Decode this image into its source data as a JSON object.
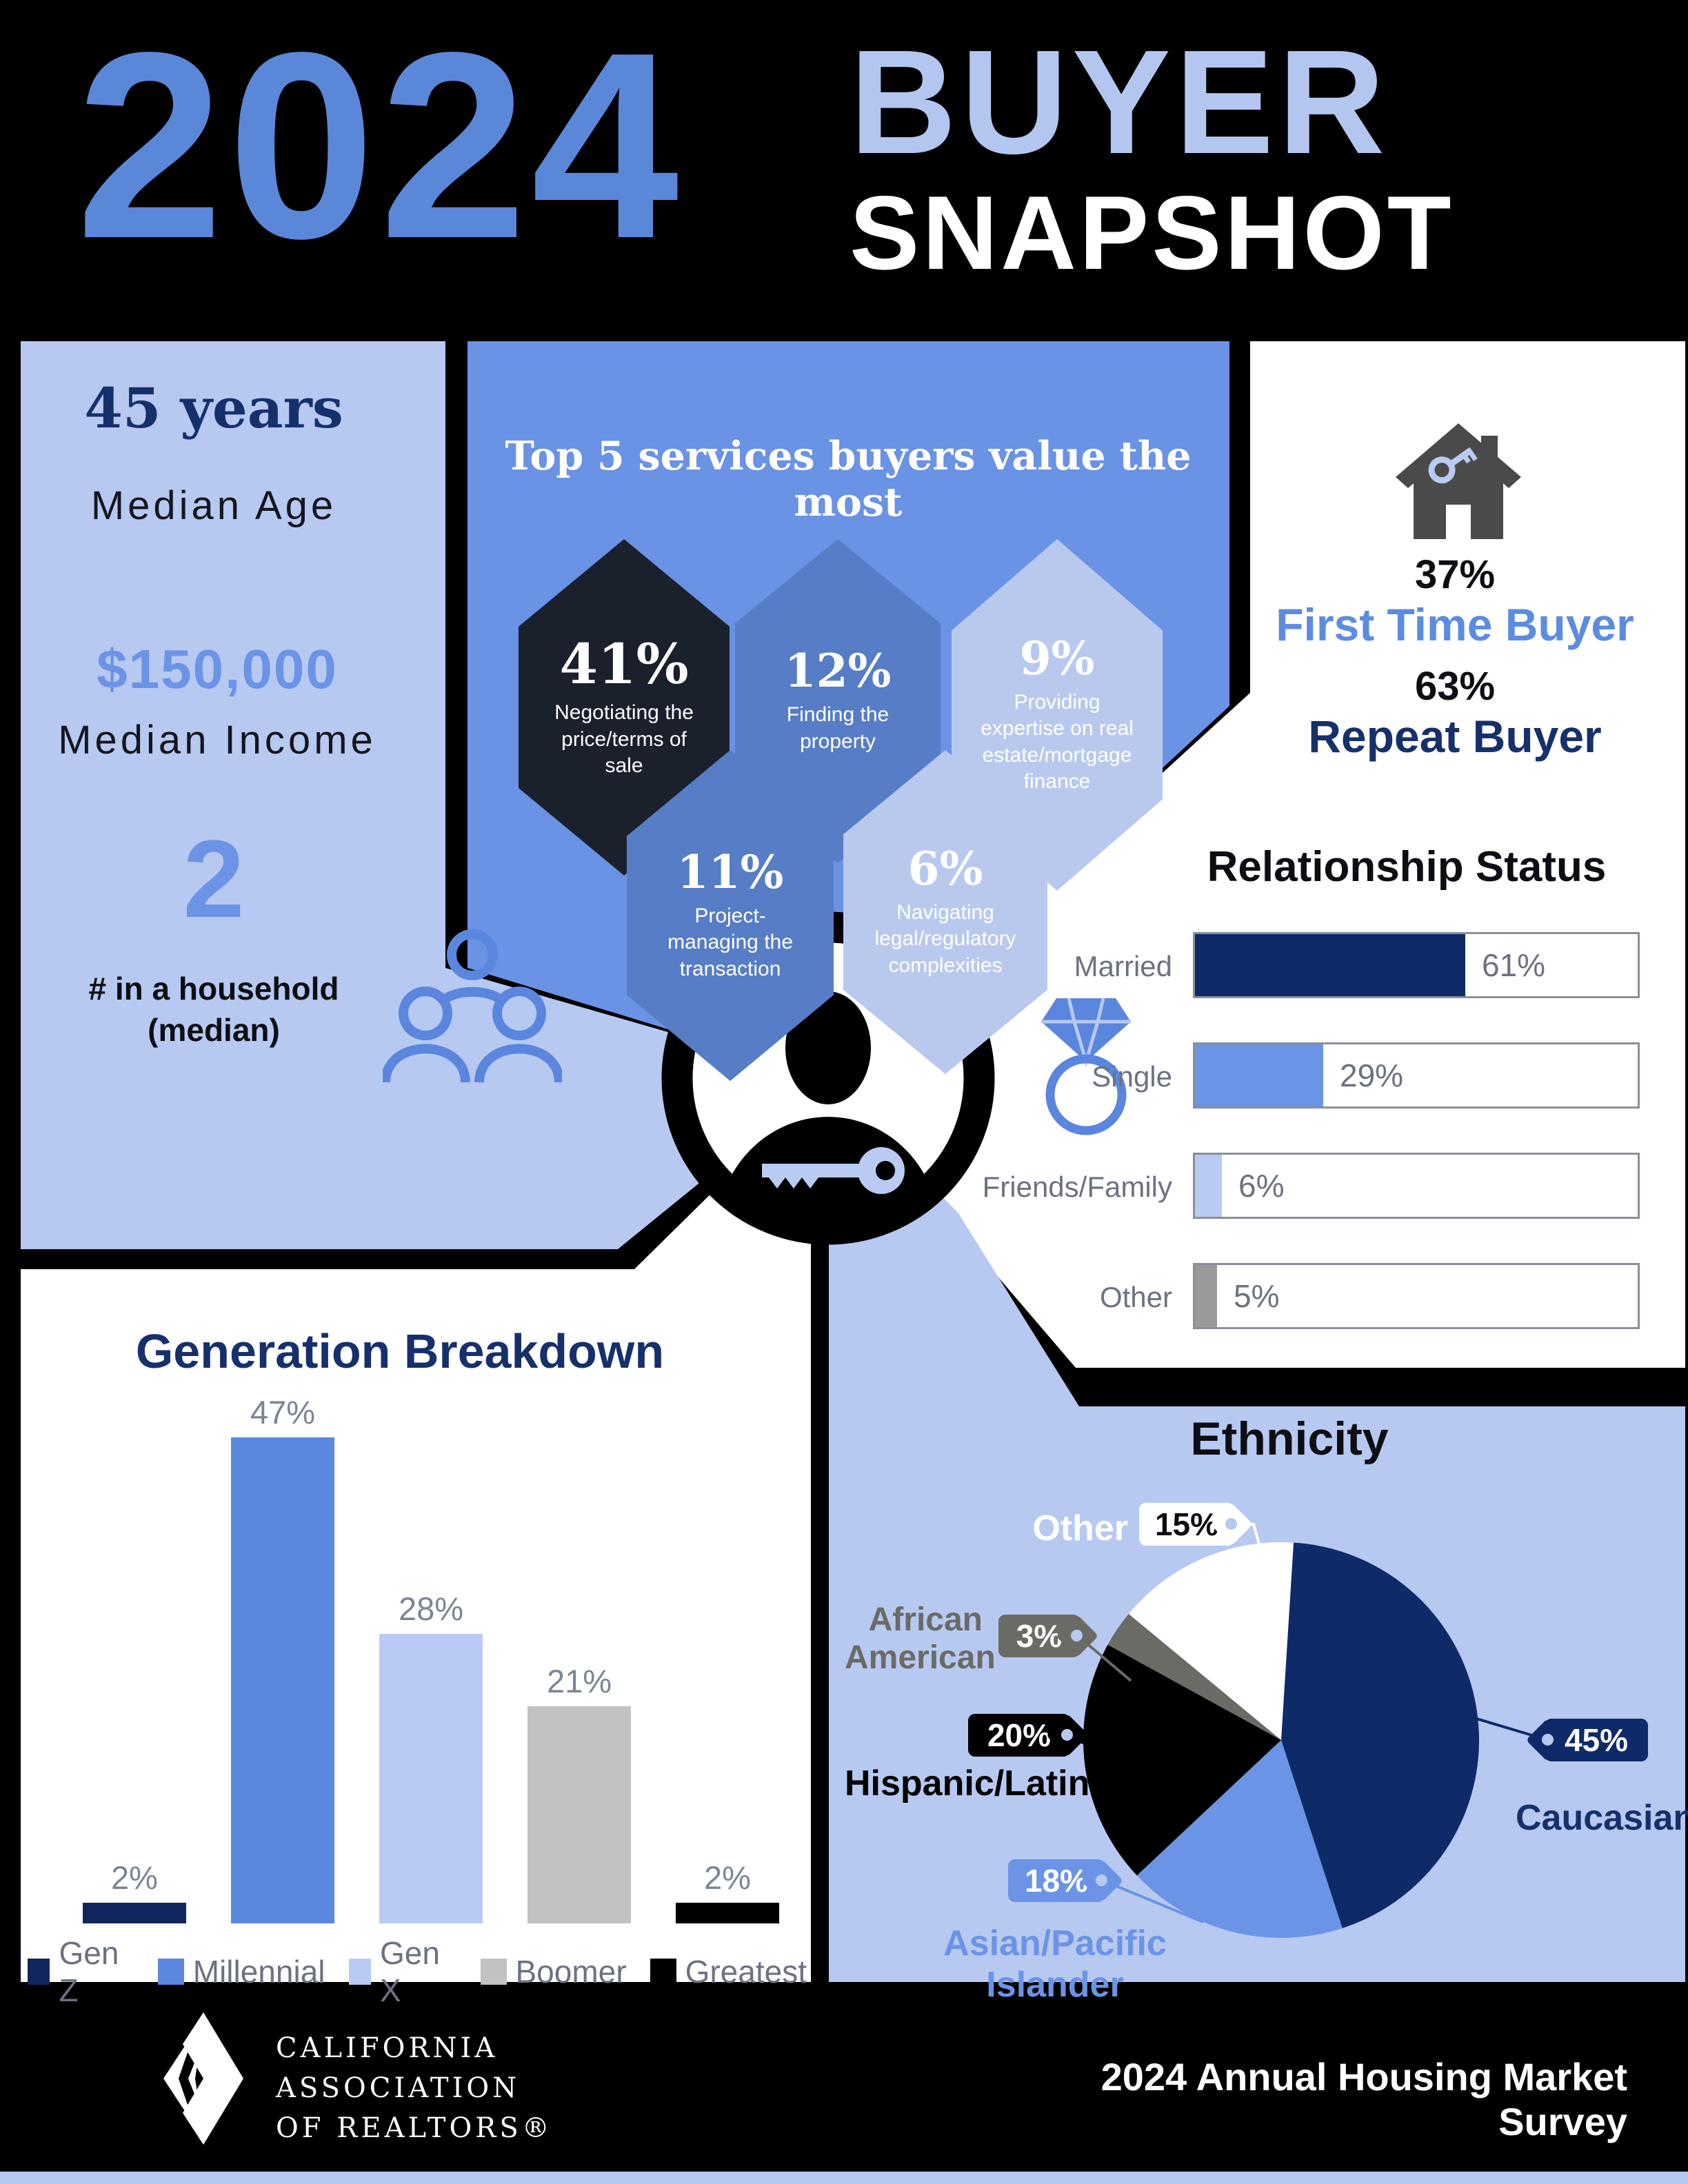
{
  "header": {
    "year": "2024",
    "word1": "BUYER",
    "word2": "SNAPSHOT"
  },
  "left_stats": {
    "age_value": "45 years",
    "age_label": "Median Age",
    "income_value": "$150,000",
    "income_label": "Median Income",
    "household_value": "2",
    "household_label": "# in a household\n(median)"
  },
  "services": {
    "title": "Top 5 services buyers value the most",
    "items": [
      {
        "pct": "41%",
        "desc": "Negotiating the\nprice/terms of\nsale",
        "color": "#1b212c"
      },
      {
        "pct": "12%",
        "desc": "Finding the\nproperty",
        "color": "#567dc6"
      },
      {
        "pct": "9%",
        "desc": "Providing\nexpertise on real\nestate/mortgage\nfinance",
        "color": "#b9c9ee"
      },
      {
        "pct": "11%",
        "desc": "Project-\nmanaging the\ntransaction",
        "color": "#567dc6"
      },
      {
        "pct": "6%",
        "desc": "Navigating\nlegal/regulatory\ncomplexities",
        "color": "#b9c9ee"
      }
    ]
  },
  "buyer_type": {
    "first_pct": "37%",
    "first_label": "First Time Buyer",
    "repeat_pct": "63%",
    "repeat_label": "Repeat Buyer"
  },
  "relationship": {
    "title": "Relationship Status",
    "bars": [
      {
        "label": "Married",
        "value": 61,
        "display": "61%",
        "color": "#0f2a68"
      },
      {
        "label": "Single",
        "value": 29,
        "display": "29%",
        "color": "#6b94e6"
      },
      {
        "label": "Friends/Family",
        "value": 6,
        "display": "6%",
        "color": "#b9cbf2"
      },
      {
        "label": "Other",
        "value": 5,
        "display": "5%",
        "color": "#9a9a9a"
      }
    ]
  },
  "generation": {
    "title": "Generation Breakdown",
    "bars": [
      {
        "label": "Gen Z",
        "value": 2,
        "display": "2%",
        "color": "#12265e"
      },
      {
        "label": "Millennial",
        "value": 47,
        "display": "47%",
        "color": "#5b87e0"
      },
      {
        "label": "Gen X",
        "value": 28,
        "display": "28%",
        "color": "#b9cbf4"
      },
      {
        "label": "Boomer",
        "value": 21,
        "display": "21%",
        "color": "#c2c2c2"
      },
      {
        "label": "Greatest",
        "value": 2,
        "display": "2%",
        "color": "#000000"
      }
    ]
  },
  "ethnicity": {
    "title": "Ethnicity",
    "slices": [
      {
        "label": "Caucasian",
        "value": 45,
        "display": "45%",
        "color": "#0f2a68",
        "label_color": "#16306b"
      },
      {
        "label": "Asian/Pacific Islander",
        "value": 18,
        "display": "18%",
        "color": "#6b94e6",
        "label_color": "#6b94e6"
      },
      {
        "label": "Hispanic/Latino",
        "value": 20,
        "display": "20%",
        "color": "#000000",
        "label_color": "#000000"
      },
      {
        "label": "African\nAmerican",
        "value": 3,
        "display": "3%",
        "color": "#6b6b66",
        "label_color": "#6b6b66"
      },
      {
        "label": "Other",
        "value": 15,
        "display": "15%",
        "color": "#ffffff",
        "label_color": "#ffffff",
        "text_color": "#0c0e14"
      }
    ]
  },
  "footer": {
    "org_lines": [
      "CALIFORNIA",
      "ASSOCIATION",
      "OF REALTORS®"
    ],
    "survey": "2024 Annual Housing Market Survey"
  },
  "colors": {
    "header_year": "#5b87d9",
    "header_buyer": "#b3c6ef",
    "panel_light": "#b7c9f1",
    "panel_blue": "#6a92e5",
    "navy": "#0f2a68",
    "navy_text": "#16306b",
    "blue_mid": "#6b94e6",
    "blue_light": "#b9cbf2",
    "gray_text": "#6b7280",
    "white": "#ffffff",
    "black": "#000000",
    "house_gray": "#4a4a4a"
  },
  "chart_data": [
    {
      "type": "bar",
      "title": "Generation Breakdown",
      "categories": [
        "Gen Z",
        "Millennial",
        "Gen X",
        "Boomer",
        "Greatest"
      ],
      "values": [
        2,
        47,
        28,
        21,
        2
      ],
      "unit": "%",
      "ylim": [
        0,
        50
      ],
      "grid": false,
      "legend_position": "bottom"
    },
    {
      "type": "bar",
      "orientation": "horizontal",
      "title": "Relationship Status",
      "categories": [
        "Married",
        "Single",
        "Friends/Family",
        "Other"
      ],
      "values": [
        61,
        29,
        6,
        5
      ],
      "unit": "%",
      "xlim": [
        0,
        100
      ],
      "grid": false
    },
    {
      "type": "pie",
      "title": "Ethnicity",
      "categories": [
        "Caucasian",
        "Asian/Pacific Islander",
        "Hispanic/Latino",
        "African American",
        "Other"
      ],
      "values": [
        45,
        18,
        20,
        3,
        15
      ],
      "unit": "%",
      "start_angle": "top",
      "direction": "clockwise"
    },
    {
      "type": "bar",
      "title": "Top 5 services buyers value the most",
      "categories": [
        "Negotiating the price/terms of sale",
        "Finding the property",
        "Providing expertise on real estate/mortgage finance",
        "Project-managing the transaction",
        "Navigating legal/regulatory complexities"
      ],
      "values": [
        41,
        12,
        9,
        11,
        6
      ],
      "unit": "%"
    }
  ]
}
